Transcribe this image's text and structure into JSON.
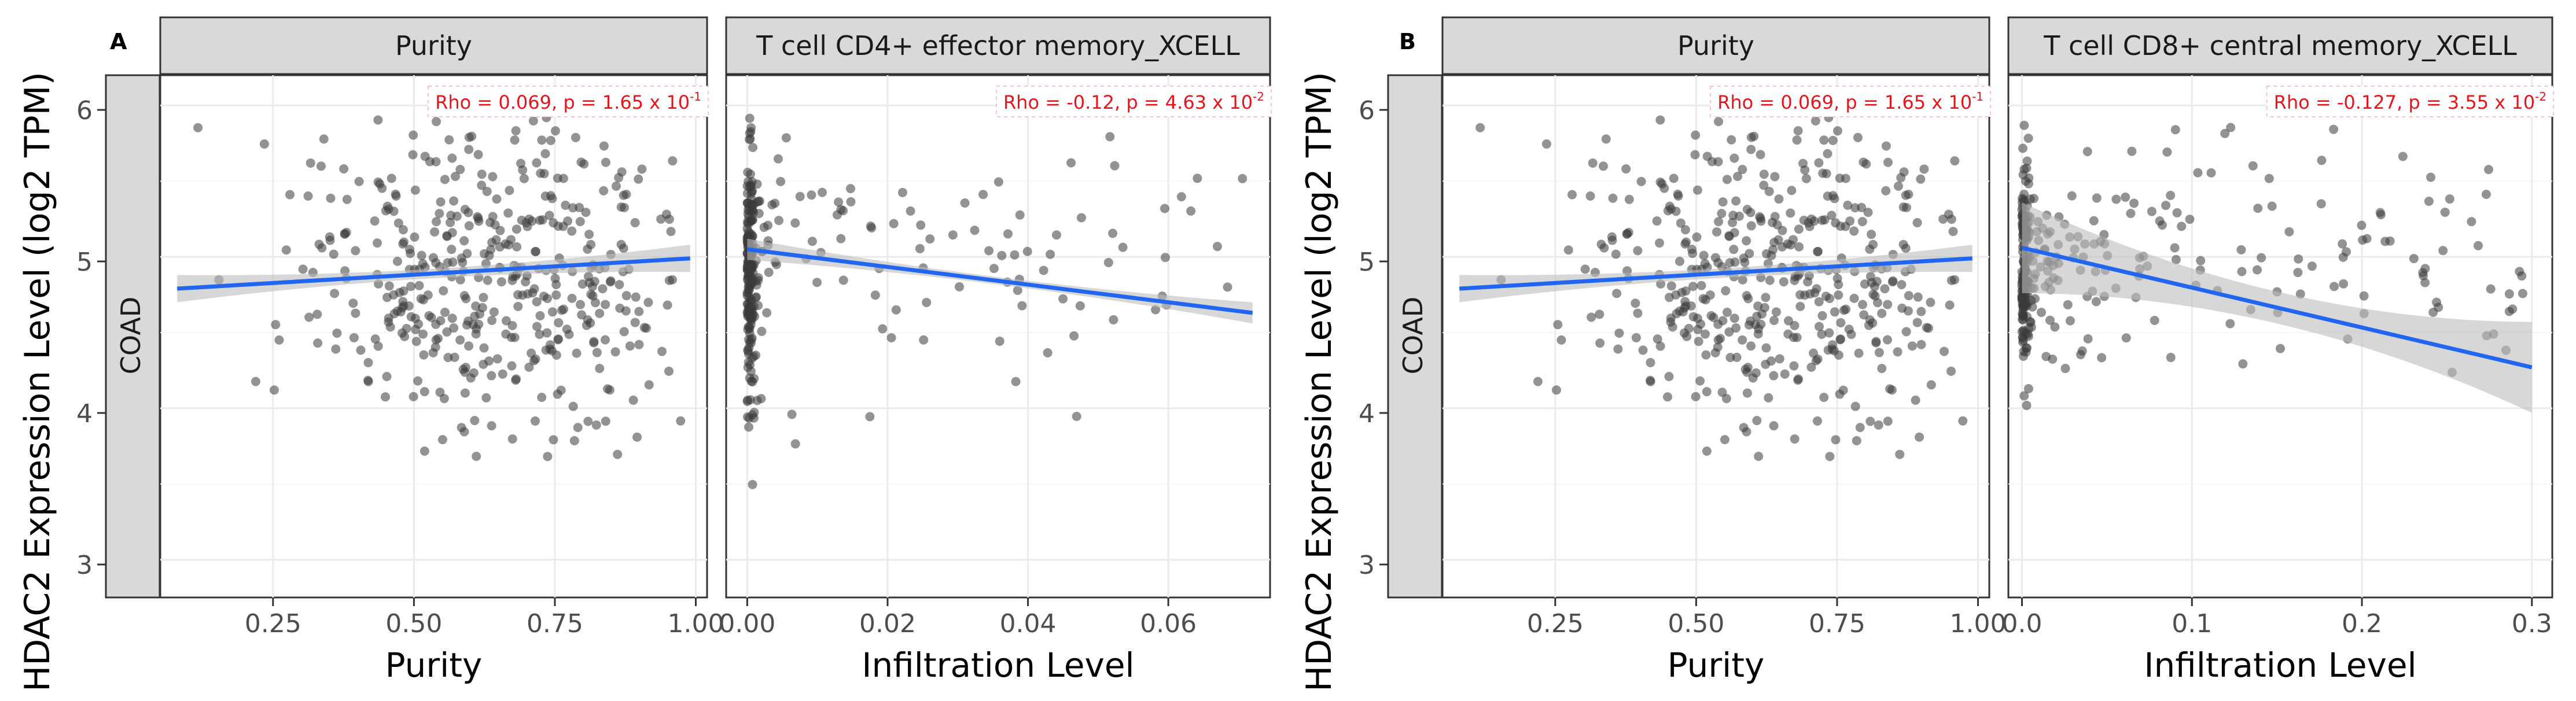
{
  "figure": {
    "panel_labels": [
      "A",
      "B"
    ],
    "ylabel": "HDAC2 Expression Level (log2 TPM)",
    "row_strip_label": "COAD",
    "y_ticks": [
      "3",
      "4",
      "5",
      "6"
    ],
    "colors": {
      "strip": "#d9d9d9",
      "point": "#3a3a3a",
      "line": "#2166f0",
      "band": "#bdbdbd",
      "annotation": "#e8141a",
      "grid": "#ebebeb"
    }
  },
  "chart_data": [
    {
      "type": "scatter",
      "panel": "A",
      "facet": "Purity",
      "xlabel": "Purity",
      "x_ticks": [
        "0.25",
        "0.50",
        "0.75",
        "1.00"
      ],
      "x_tick_values": [
        0.25,
        0.5,
        0.75,
        1.0
      ],
      "xlim": [
        0.05,
        1.02
      ],
      "ylim": [
        2.75,
        6.2
      ],
      "annotation": "Rho = 0.069, p = 1.65 x 10",
      "annotation_exp": "-1",
      "fit": {
        "x0": 0.08,
        "y0": 4.79,
        "x1": 0.99,
        "y1": 4.99,
        "se": 0.09
      },
      "cloud": {
        "n": 430,
        "xmin": 0.08,
        "xmax": 0.99,
        "xmode": 0.72,
        "ymean": 4.9,
        "ysd": 0.48,
        "seed": 11
      }
    },
    {
      "type": "scatter",
      "panel": "A",
      "facet": "T cell CD4+ effector memory_XCELL",
      "xlabel": "Infiltration Level",
      "x_ticks": [
        "0.00",
        "0.02",
        "0.04",
        "0.06"
      ],
      "x_tick_values": [
        0.0,
        0.02,
        0.04,
        0.06
      ],
      "xlim": [
        -0.003,
        0.0745
      ],
      "ylim": [
        2.75,
        6.2
      ],
      "annotation": "Rho = -0.12, p = 4.63 x 10",
      "annotation_exp": "-2",
      "fit": {
        "x0": 0.0,
        "y0": 5.05,
        "x1": 0.072,
        "y1": 4.63,
        "se": 0.07
      },
      "cloud": {
        "n": 300,
        "zero_frac": 0.55,
        "xmax": 0.072,
        "ymean": 4.95,
        "ysd": 0.4,
        "seed": 23
      }
    },
    {
      "type": "scatter",
      "panel": "B",
      "facet": "Purity",
      "xlabel": "Purity",
      "x_ticks": [
        "0.25",
        "0.50",
        "0.75",
        "1.00"
      ],
      "x_tick_values": [
        0.25,
        0.5,
        0.75,
        1.0
      ],
      "xlim": [
        0.05,
        1.02
      ],
      "ylim": [
        2.75,
        6.2
      ],
      "annotation": "Rho = 0.069, p = 1.65 x 10",
      "annotation_exp": "-1",
      "fit": {
        "x0": 0.08,
        "y0": 4.79,
        "x1": 0.99,
        "y1": 4.99,
        "se": 0.09
      },
      "cloud": {
        "n": 430,
        "xmin": 0.08,
        "xmax": 0.99,
        "xmode": 0.72,
        "ymean": 4.9,
        "ysd": 0.48,
        "seed": 11
      }
    },
    {
      "type": "scatter",
      "panel": "B",
      "facet": "T cell CD8+ central memory_XCELL",
      "xlabel": "Infiltration Level",
      "x_ticks": [
        "0.0",
        "0.1",
        "0.2",
        "0.3"
      ],
      "x_tick_values": [
        0.0,
        0.1,
        0.2,
        0.3
      ],
      "xlim": [
        -0.008,
        0.312
      ],
      "ylim": [
        2.75,
        6.2
      ],
      "annotation": "Rho = -0.127, p = 3.55 x 10",
      "annotation_exp": "-2",
      "fit": {
        "x0": 0.0,
        "y0": 5.06,
        "x1": 0.3,
        "y1": 4.27,
        "se": 0.3
      },
      "cloud": {
        "n": 320,
        "zero_frac": 0.3,
        "xmax": 0.3,
        "ymean": 4.98,
        "ysd": 0.36,
        "seed": 37
      }
    }
  ]
}
